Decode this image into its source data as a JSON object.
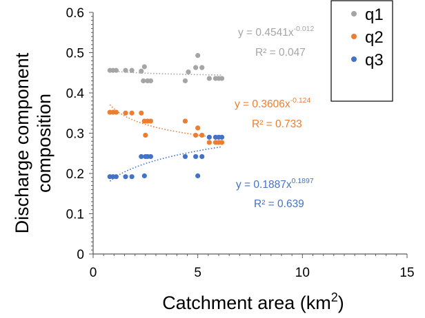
{
  "chart_data": {
    "type": "scatter",
    "title": "",
    "xlabel": "Catchment area (km",
    "xlabel_sup": "2",
    "xlabel_end": ")",
    "ylabel_line1": "Discharge component",
    "ylabel_line2": "composition",
    "xlim": [
      0,
      15
    ],
    "ylim": [
      0,
      0.6
    ],
    "x_ticks": [
      "0",
      "5",
      "10",
      "15"
    ],
    "y_ticks": [
      "0",
      "0.1",
      "0.2",
      "0.3",
      "0.4",
      "0.5",
      "0.6"
    ],
    "grid": false,
    "legend_position": "top-right",
    "series": [
      {
        "name": "q1",
        "color": "#a5a5a5",
        "points": [
          [
            0.8,
            0.456
          ],
          [
            0.95,
            0.456
          ],
          [
            1.1,
            0.456
          ],
          [
            1.55,
            0.456
          ],
          [
            1.85,
            0.456
          ],
          [
            2.3,
            0.454
          ],
          [
            2.45,
            0.465
          ],
          [
            2.4,
            0.43
          ],
          [
            2.6,
            0.43
          ],
          [
            2.75,
            0.43
          ],
          [
            4.4,
            0.43
          ],
          [
            4.55,
            0.452
          ],
          [
            4.9,
            0.463
          ],
          [
            5.0,
            0.493
          ],
          [
            5.2,
            0.463
          ],
          [
            5.55,
            0.436
          ],
          [
            5.85,
            0.436
          ],
          [
            6.0,
            0.436
          ],
          [
            6.15,
            0.436
          ]
        ],
        "trend": {
          "a": 0.4541,
          "b": -0.012,
          "x_from": 0.8,
          "x_to": 6.15
        },
        "equation_prefix": "y = 0.4541x",
        "equation_exponent": "-0.012",
        "r2_label": "R² = 0.047"
      },
      {
        "name": "q2",
        "color": "#ed7d31",
        "points": [
          [
            0.8,
            0.352
          ],
          [
            0.95,
            0.352
          ],
          [
            1.1,
            0.352
          ],
          [
            1.55,
            0.35
          ],
          [
            1.85,
            0.35
          ],
          [
            2.3,
            0.35
          ],
          [
            2.45,
            0.33
          ],
          [
            2.5,
            0.295
          ],
          [
            2.6,
            0.33
          ],
          [
            2.75,
            0.33
          ],
          [
            4.4,
            0.33
          ],
          [
            4.9,
            0.295
          ],
          [
            5.0,
            0.313
          ],
          [
            5.2,
            0.295
          ],
          [
            5.55,
            0.277
          ],
          [
            5.85,
            0.277
          ],
          [
            6.0,
            0.277
          ],
          [
            6.15,
            0.277
          ]
        ],
        "trend": {
          "a": 0.3606,
          "b": -0.124,
          "x_from": 0.8,
          "x_to": 6.15
        },
        "equation_prefix": "y = 0.3606x",
        "equation_exponent": "-0.124",
        "r2_label": "R² = 0.733"
      },
      {
        "name": "q3",
        "color": "#4472c4",
        "points": [
          [
            0.8,
            0.192
          ],
          [
            0.95,
            0.192
          ],
          [
            1.1,
            0.192
          ],
          [
            1.55,
            0.192
          ],
          [
            1.85,
            0.192
          ],
          [
            2.3,
            0.242
          ],
          [
            2.45,
            0.194
          ],
          [
            2.5,
            0.242
          ],
          [
            2.6,
            0.242
          ],
          [
            2.75,
            0.242
          ],
          [
            4.4,
            0.242
          ],
          [
            4.9,
            0.242
          ],
          [
            5.0,
            0.194
          ],
          [
            5.2,
            0.242
          ],
          [
            5.55,
            0.29
          ],
          [
            5.85,
            0.29
          ],
          [
            6.0,
            0.29
          ],
          [
            6.15,
            0.29
          ]
        ],
        "trend": {
          "a": 0.1887,
          "b": 0.1897,
          "x_from": 0.8,
          "x_to": 6.15
        },
        "equation_prefix": "y = 0.1887x",
        "equation_exponent": "0.1897",
        "r2_label": "R² = 0.639"
      }
    ]
  }
}
